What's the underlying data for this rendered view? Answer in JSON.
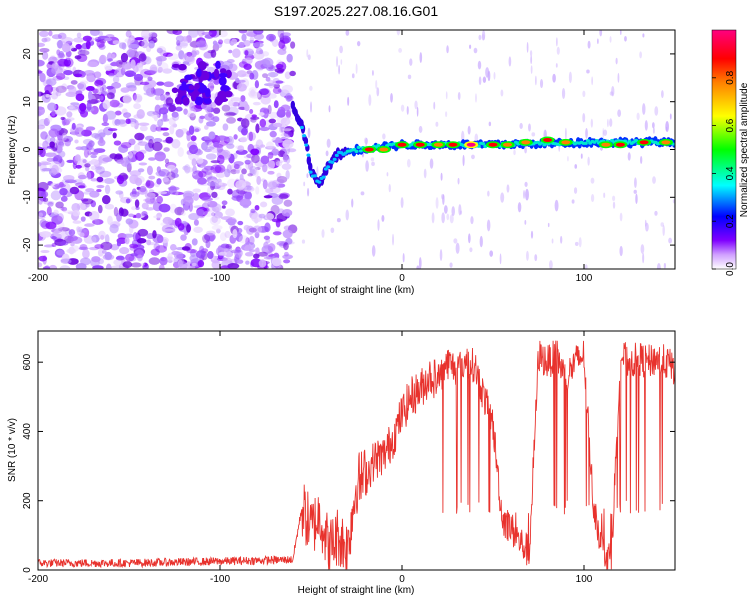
{
  "chart_data": [
    {
      "type": "heatmap",
      "title": "S197.2025.227.08.16.G01",
      "xlabel": "Height of straight line (km)",
      "ylabel": "Frequency (Hz)",
      "xlim": [
        -200,
        150
      ],
      "ylim": [
        -25,
        25
      ],
      "xticks": [
        -200,
        -100,
        0,
        100
      ],
      "yticks": [
        -20,
        -10,
        0,
        10,
        20
      ],
      "colorbar": {
        "label": "Normalized spectral amplitude",
        "range": [
          0,
          1
        ],
        "ticks": [
          "0.0",
          "0.2",
          "0.4",
          "0.6",
          "0.8"
        ],
        "colormap": [
          "#ffffff",
          "#7f00ff",
          "#0000ff",
          "#00ffff",
          "#00ff00",
          "#ffff00",
          "#ff8000",
          "#ff0000",
          "#ff0080"
        ]
      },
      "noise_region_x": [
        -200,
        -60
      ],
      "track": [
        {
          "x": -60,
          "y": 9
        },
        {
          "x": -55,
          "y": 5
        },
        {
          "x": -52,
          "y": 0
        },
        {
          "x": -50,
          "y": -5
        },
        {
          "x": -45,
          "y": -7
        },
        {
          "x": -40,
          "y": -3
        },
        {
          "x": -35,
          "y": -1
        },
        {
          "x": -25,
          "y": 0
        },
        {
          "x": 0,
          "y": 1
        },
        {
          "x": 50,
          "y": 1
        },
        {
          "x": 100,
          "y": 1.5
        },
        {
          "x": 150,
          "y": 1.5
        }
      ],
      "hotspots": [
        {
          "x": -18,
          "y": 0,
          "amp": 0.85
        },
        {
          "x": -10,
          "y": 0,
          "amp": 0.8
        },
        {
          "x": 0,
          "y": 1,
          "amp": 0.9
        },
        {
          "x": 10,
          "y": 1,
          "amp": 0.85
        },
        {
          "x": 20,
          "y": 1,
          "amp": 0.75
        },
        {
          "x": 28,
          "y": 1,
          "amp": 0.9
        },
        {
          "x": 38,
          "y": 1,
          "amp": 0.95
        },
        {
          "x": 50,
          "y": 1,
          "amp": 0.85
        },
        {
          "x": 58,
          "y": 1,
          "amp": 0.75
        },
        {
          "x": 68,
          "y": 1.5,
          "amp": 0.8
        },
        {
          "x": 80,
          "y": 2,
          "amp": 0.9
        },
        {
          "x": 90,
          "y": 1.5,
          "amp": 0.75
        },
        {
          "x": 112,
          "y": 1,
          "amp": 0.8
        },
        {
          "x": 120,
          "y": 1,
          "amp": 0.85
        },
        {
          "x": 133,
          "y": 1.5,
          "amp": 0.85
        },
        {
          "x": 145,
          "y": 1.5,
          "amp": 0.8
        }
      ]
    },
    {
      "type": "line",
      "xlabel": "Height of straight line (km)",
      "ylabel": "SNR (10 * v/v)",
      "xlim": [
        -200,
        150
      ],
      "ylim": [
        0,
        690
      ],
      "xticks": [
        -200,
        -100,
        0,
        100
      ],
      "yticks": [
        0,
        200,
        400,
        600
      ],
      "color": "#e8322d",
      "series": [
        {
          "name": "SNR",
          "x": [
            -200,
            -150,
            -100,
            -60,
            -55,
            -50,
            -45,
            -40,
            -35,
            -30,
            -25,
            -20,
            -15,
            -10,
            -5,
            0,
            5,
            10,
            15,
            20,
            25,
            30,
            35,
            40,
            45,
            50,
            55,
            60,
            65,
            70,
            75,
            80,
            85,
            90,
            95,
            100,
            105,
            110,
            115,
            120,
            125,
            130,
            135,
            140,
            145,
            150
          ],
          "y": [
            20,
            20,
            25,
            30,
            180,
            120,
            160,
            60,
            100,
            60,
            250,
            270,
            320,
            330,
            380,
            450,
            500,
            520,
            560,
            550,
            600,
            580,
            600,
            590,
            500,
            420,
            150,
            120,
            80,
            50,
            620,
            600,
            620,
            550,
            600,
            620,
            200,
            60,
            30,
            620,
            600,
            610,
            600,
            610,
            600,
            580
          ]
        }
      ]
    }
  ]
}
